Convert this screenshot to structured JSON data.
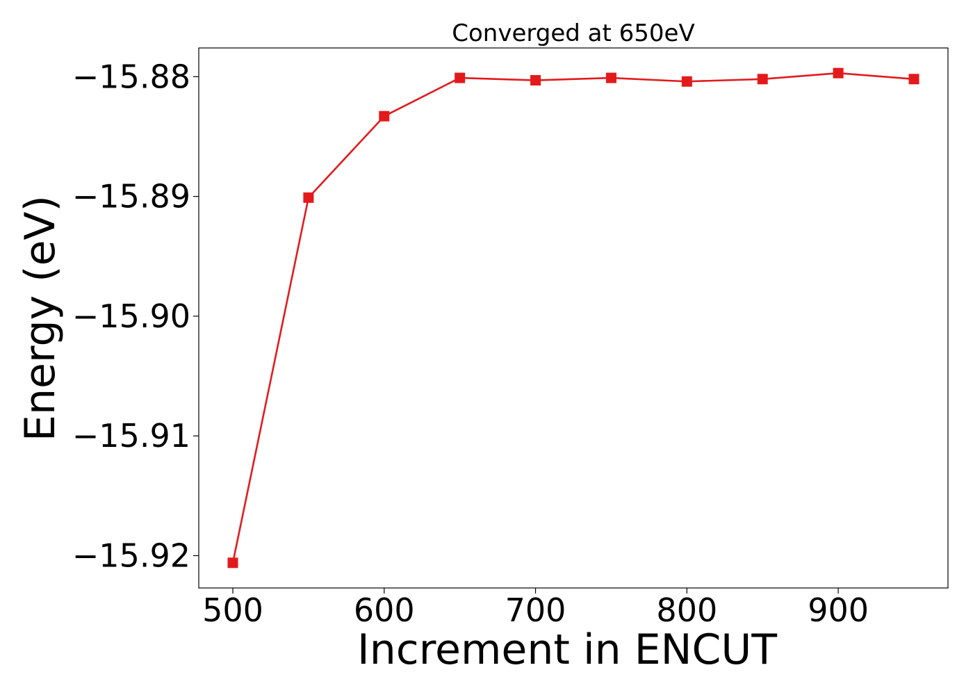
{
  "chart_data": {
    "type": "line",
    "title": "Converged at 650eV",
    "xlabel": "Increment in ENCUT",
    "ylabel": "Energy (eV)",
    "x": [
      500,
      550,
      600,
      650,
      700,
      750,
      800,
      850,
      900,
      950
    ],
    "series": [
      {
        "values": [
          -15.9206,
          -15.8901,
          -15.8833,
          -15.8801,
          -15.8803,
          -15.8801,
          -15.8804,
          -15.8802,
          -15.8797,
          -15.8802
        ],
        "color": "#e31a1c",
        "marker": "square"
      }
    ],
    "xlim": [
      477.5,
      972.5
    ],
    "ylim": [
      -15.9227,
      -15.8776
    ],
    "xticks": [
      500,
      600,
      700,
      800,
      900
    ],
    "xtick_labels": [
      "500",
      "600",
      "700",
      "800",
      "900"
    ],
    "yticks": [
      -15.92,
      -15.91,
      -15.9,
      -15.89,
      -15.88
    ],
    "ytick_labels": [
      "−15.92",
      "−15.91",
      "−15.90",
      "−15.89",
      "−15.88"
    ],
    "grid": false,
    "legend": false
  }
}
